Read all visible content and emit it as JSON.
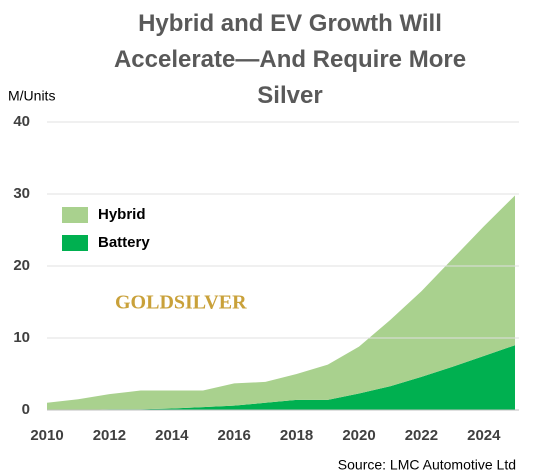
{
  "chart_data": {
    "type": "stacked_area",
    "title": "Hybrid and EV Growth Will Accelerate—And Require More Silver",
    "y_label": "M/Units",
    "source": "Source: LMC Automotive Ltd",
    "logo": "GOLDSILVER",
    "x": [
      2010,
      2011,
      2012,
      2013,
      2014,
      2015,
      2016,
      2017,
      2018,
      2019,
      2020,
      2021,
      2022,
      2023,
      2024,
      2025
    ],
    "series": [
      {
        "name": "Battery",
        "color": "#00b050",
        "values": [
          0,
          0,
          0.1,
          0.1,
          0.2,
          0.4,
          0.6,
          1.0,
          1.4,
          1.4,
          2.3,
          3.3,
          4.6,
          6,
          7.5,
          9
        ]
      },
      {
        "name": "Hybrid",
        "color": "#a9d18e",
        "values": [
          1.0,
          1.5,
          2.1,
          2.6,
          2.5,
          2.3,
          3.1,
          2.9,
          3.6,
          4.9,
          6.5,
          9.2,
          11.9,
          15,
          18,
          20.8
        ]
      }
    ],
    "xlim": [
      2010,
      2025
    ],
    "xticks": [
      2010,
      2012,
      2014,
      2016,
      2018,
      2020,
      2022,
      2024
    ],
    "ylim": [
      0,
      40
    ],
    "yticks": [
      0,
      10,
      20,
      30,
      40
    ],
    "grid": true
  }
}
